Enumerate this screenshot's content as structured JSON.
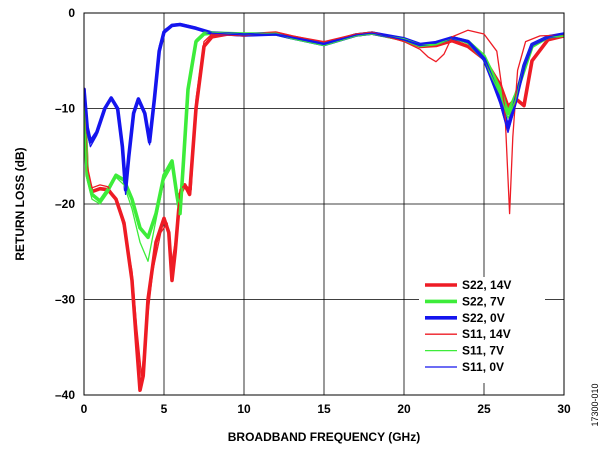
{
  "chart_data": {
    "type": "line",
    "xlabel": "BROADBAND FREQUENCY (GHz)",
    "ylabel": "RETURN LOSS (dB)",
    "xlim": [
      0,
      30
    ],
    "ylim": [
      -40,
      0
    ],
    "x_ticks": [
      0,
      5,
      10,
      15,
      20,
      25,
      30
    ],
    "y_ticks": [
      0,
      -10,
      -20,
      -30,
      -40
    ],
    "y_tick_labels": [
      "0",
      "–10",
      "–20",
      "–30",
      "–40"
    ],
    "grid": true,
    "legend_position": "bottom-right",
    "figure_id": "17300-010",
    "series": [
      {
        "name": "S22, 14V",
        "color": "#ee1c25",
        "width": "thick",
        "points": [
          [
            0,
            -8
          ],
          [
            0.2,
            -17
          ],
          [
            0.5,
            -18.7
          ],
          [
            1,
            -18.4
          ],
          [
            1.5,
            -18.5
          ],
          [
            2,
            -19.5
          ],
          [
            2.5,
            -22
          ],
          [
            3,
            -28
          ],
          [
            3.3,
            -35
          ],
          [
            3.5,
            -39.5
          ],
          [
            3.7,
            -38
          ],
          [
            4,
            -30
          ],
          [
            4.5,
            -24
          ],
          [
            5,
            -21.5
          ],
          [
            5.3,
            -23
          ],
          [
            5.5,
            -28
          ],
          [
            5.7,
            -25
          ],
          [
            6,
            -19
          ],
          [
            6.3,
            -18
          ],
          [
            6.6,
            -19
          ],
          [
            7,
            -10
          ],
          [
            7.5,
            -3.5
          ],
          [
            8,
            -2.5
          ],
          [
            9,
            -2.2
          ],
          [
            10,
            -2.3
          ],
          [
            12,
            -2.1
          ],
          [
            13,
            -2.5
          ],
          [
            15,
            -3.2
          ],
          [
            17,
            -2.3
          ],
          [
            18,
            -2.1
          ],
          [
            20,
            -2.8
          ],
          [
            21,
            -3.5
          ],
          [
            22,
            -3.4
          ],
          [
            23,
            -2.9
          ],
          [
            24,
            -3.5
          ],
          [
            25,
            -4.8
          ],
          [
            26,
            -7.5
          ],
          [
            26.5,
            -9.8
          ],
          [
            27,
            -9
          ],
          [
            27.5,
            -9.7
          ],
          [
            28,
            -5
          ],
          [
            29,
            -2.8
          ],
          [
            30,
            -2.4
          ]
        ]
      },
      {
        "name": "S22, 7V",
        "color": "#3dec3a",
        "width": "thick",
        "points": [
          [
            0,
            -9
          ],
          [
            0.2,
            -17
          ],
          [
            0.5,
            -19
          ],
          [
            1,
            -19.7
          ],
          [
            1.5,
            -18.5
          ],
          [
            2,
            -17
          ],
          [
            2.5,
            -17.5
          ],
          [
            3,
            -19.5
          ],
          [
            3.5,
            -22.5
          ],
          [
            4,
            -23.5
          ],
          [
            4.5,
            -21
          ],
          [
            5,
            -17
          ],
          [
            5.5,
            -15.5
          ],
          [
            5.8,
            -19
          ],
          [
            6,
            -21
          ],
          [
            6.2,
            -16
          ],
          [
            6.5,
            -8
          ],
          [
            7,
            -3
          ],
          [
            7.5,
            -2.2
          ],
          [
            8,
            -2.1
          ],
          [
            10,
            -2.2
          ],
          [
            12,
            -2.2
          ],
          [
            13,
            -2.6
          ],
          [
            15,
            -3.3
          ],
          [
            17,
            -2.3
          ],
          [
            18,
            -2.1
          ],
          [
            20,
            -2.8
          ],
          [
            21,
            -3.4
          ],
          [
            22,
            -3.2
          ],
          [
            23,
            -2.6
          ],
          [
            24,
            -3
          ],
          [
            25,
            -4.5
          ],
          [
            26,
            -8
          ],
          [
            26.5,
            -10.5
          ],
          [
            27,
            -8.5
          ],
          [
            27.5,
            -6
          ],
          [
            28,
            -3.5
          ],
          [
            29,
            -2.5
          ],
          [
            30,
            -2.3
          ]
        ]
      },
      {
        "name": "S22, 0V",
        "color": "#1515ee",
        "width": "thick",
        "points": [
          [
            0,
            -8
          ],
          [
            0.2,
            -12
          ],
          [
            0.4,
            -13.5
          ],
          [
            0.8,
            -12.5
          ],
          [
            1.3,
            -10
          ],
          [
            1.7,
            -8.9
          ],
          [
            2.1,
            -10
          ],
          [
            2.4,
            -14
          ],
          [
            2.6,
            -18.5
          ],
          [
            2.8,
            -15
          ],
          [
            3.1,
            -10.5
          ],
          [
            3.4,
            -9
          ],
          [
            3.8,
            -10.5
          ],
          [
            4.1,
            -13.5
          ],
          [
            4.4,
            -9
          ],
          [
            4.7,
            -4
          ],
          [
            5,
            -2
          ],
          [
            5.5,
            -1.3
          ],
          [
            6,
            -1.2
          ],
          [
            7,
            -1.6
          ],
          [
            8,
            -2.1
          ],
          [
            10,
            -2.3
          ],
          [
            12,
            -2.2
          ],
          [
            13,
            -2.6
          ],
          [
            15,
            -3.3
          ],
          [
            17,
            -2.3
          ],
          [
            18,
            -2.1
          ],
          [
            20,
            -2.7
          ],
          [
            21,
            -3.3
          ],
          [
            22,
            -3.1
          ],
          [
            23,
            -2.6
          ],
          [
            24,
            -3
          ],
          [
            25,
            -4.8
          ],
          [
            26,
            -9
          ],
          [
            26.5,
            -12
          ],
          [
            27,
            -9
          ],
          [
            27.5,
            -5.5
          ],
          [
            28,
            -3.3
          ],
          [
            29,
            -2.5
          ],
          [
            30,
            -2.2
          ]
        ]
      },
      {
        "name": "S11, 14V",
        "color": "#ee1c25",
        "width": "thin",
        "points": [
          [
            0,
            -8.5
          ],
          [
            0.2,
            -16
          ],
          [
            0.5,
            -18.3
          ],
          [
            1,
            -18
          ],
          [
            1.5,
            -18.2
          ],
          [
            2,
            -19.5
          ],
          [
            2.5,
            -22.5
          ],
          [
            3,
            -27
          ],
          [
            3.3,
            -33
          ],
          [
            3.6,
            -38
          ],
          [
            3.9,
            -33
          ],
          [
            4.3,
            -27
          ],
          [
            4.8,
            -23
          ],
          [
            5.2,
            -22
          ],
          [
            5.5,
            -26
          ],
          [
            5.7,
            -24
          ],
          [
            6,
            -18.5
          ],
          [
            6.3,
            -18
          ],
          [
            6.7,
            -18.5
          ],
          [
            7,
            -9
          ],
          [
            7.5,
            -3
          ],
          [
            8,
            -2.2
          ],
          [
            10,
            -2.4
          ],
          [
            12,
            -2
          ],
          [
            13,
            -2.4
          ],
          [
            15,
            -3
          ],
          [
            17,
            -2.2
          ],
          [
            18,
            -2
          ],
          [
            20,
            -3
          ],
          [
            21,
            -3.8
          ],
          [
            21.5,
            -4.6
          ],
          [
            22,
            -5.1
          ],
          [
            22.5,
            -4.3
          ],
          [
            23,
            -2.5
          ],
          [
            24,
            -1.8
          ],
          [
            25,
            -2.2
          ],
          [
            25.8,
            -4
          ],
          [
            26.3,
            -10
          ],
          [
            26.6,
            -21
          ],
          [
            26.8,
            -13
          ],
          [
            27.1,
            -6
          ],
          [
            27.6,
            -3
          ],
          [
            28.5,
            -2.4
          ],
          [
            30,
            -2.3
          ]
        ]
      },
      {
        "name": "S11, 7V",
        "color": "#3dec3a",
        "width": "thin",
        "points": [
          [
            0,
            -9.5
          ],
          [
            0.2,
            -17.5
          ],
          [
            0.5,
            -19.5
          ],
          [
            1,
            -20
          ],
          [
            1.5,
            -18.8
          ],
          [
            2,
            -17.2
          ],
          [
            2.5,
            -18
          ],
          [
            3,
            -20.5
          ],
          [
            3.5,
            -24
          ],
          [
            4,
            -26
          ],
          [
            4.4,
            -22.5
          ],
          [
            5,
            -17.5
          ],
          [
            5.5,
            -16
          ],
          [
            5.8,
            -19
          ],
          [
            6,
            -20
          ],
          [
            6.3,
            -14
          ],
          [
            6.6,
            -6.5
          ],
          [
            7,
            -2.8
          ],
          [
            7.5,
            -2
          ],
          [
            8,
            -2
          ],
          [
            10,
            -2.3
          ],
          [
            12,
            -2.1
          ],
          [
            13,
            -2.7
          ],
          [
            15,
            -3.4
          ],
          [
            17,
            -2.4
          ],
          [
            18,
            -2.2
          ],
          [
            20,
            -2.7
          ],
          [
            21,
            -3.3
          ],
          [
            22,
            -3.3
          ],
          [
            23,
            -2.6
          ],
          [
            24,
            -3.2
          ],
          [
            25,
            -5
          ],
          [
            26,
            -8.5
          ],
          [
            26.5,
            -11
          ],
          [
            27,
            -9
          ],
          [
            27.5,
            -5.5
          ],
          [
            28,
            -3.3
          ],
          [
            29,
            -2.5
          ],
          [
            30,
            -2.4
          ]
        ]
      },
      {
        "name": "S11, 0V",
        "color": "#1515ee",
        "width": "thin",
        "points": [
          [
            0,
            -8
          ],
          [
            0.2,
            -12.5
          ],
          [
            0.4,
            -14
          ],
          [
            0.8,
            -12.8
          ],
          [
            1.3,
            -10.2
          ],
          [
            1.7,
            -9
          ],
          [
            2.1,
            -10.3
          ],
          [
            2.4,
            -14.5
          ],
          [
            2.6,
            -19
          ],
          [
            2.8,
            -15.5
          ],
          [
            3.1,
            -10.8
          ],
          [
            3.4,
            -9.2
          ],
          [
            3.8,
            -10.8
          ],
          [
            4.1,
            -13.8
          ],
          [
            4.4,
            -8.5
          ],
          [
            4.7,
            -3.5
          ],
          [
            5,
            -1.8
          ],
          [
            5.5,
            -1.2
          ],
          [
            6,
            -1.1
          ],
          [
            7,
            -1.5
          ],
          [
            8,
            -2.1
          ],
          [
            10,
            -2.3
          ],
          [
            12,
            -2.2
          ],
          [
            13,
            -2.6
          ],
          [
            15,
            -3.3
          ],
          [
            17,
            -2.3
          ],
          [
            18,
            -2.1
          ],
          [
            20,
            -2.8
          ],
          [
            21,
            -3.3
          ],
          [
            22,
            -3.1
          ],
          [
            23,
            -2.6
          ],
          [
            24,
            -3.1
          ],
          [
            25,
            -5
          ],
          [
            26,
            -9.5
          ],
          [
            26.5,
            -12.5
          ],
          [
            27,
            -9.5
          ],
          [
            27.5,
            -5.5
          ],
          [
            28,
            -3.3
          ],
          [
            29,
            -2.5
          ],
          [
            30,
            -2.2
          ]
        ]
      }
    ]
  }
}
